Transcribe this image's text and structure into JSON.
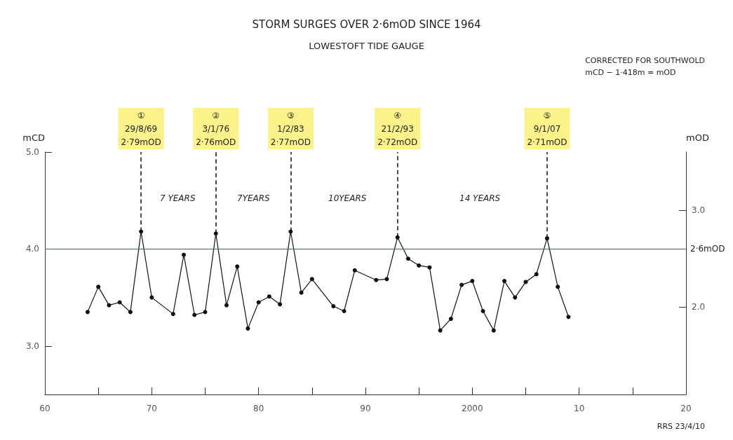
{
  "chart_data": {
    "type": "line",
    "title": "STORM SURGES OVER 2·6mOD SINCE 1964",
    "subtitle": "LOWESTOFT TIDE GAUGE",
    "ylabel": "mCD",
    "y2label": "mOD",
    "x": [
      1964,
      1965,
      1966,
      1967,
      1968,
      1969,
      1970,
      1972,
      1973,
      1974,
      1975,
      1976,
      1977,
      1978,
      1979,
      1980,
      1981,
      1982,
      1983,
      1984,
      1985,
      1987,
      1988,
      1989,
      1991,
      1992,
      1993,
      1994,
      1995,
      1996,
      1997,
      1998,
      1999,
      2000,
      2001,
      2002,
      2003,
      2004,
      2005,
      2006,
      2007,
      2008,
      2009
    ],
    "series": [
      {
        "color": "#111111",
        "values": [
          3.35,
          3.61,
          3.42,
          3.45,
          3.35,
          4.18,
          3.5,
          3.33,
          3.94,
          3.32,
          3.35,
          4.16,
          3.42,
          3.82,
          3.18,
          3.45,
          3.51,
          3.43,
          4.18,
          3.55,
          3.69,
          3.41,
          3.36,
          3.78,
          3.68,
          3.69,
          4.12,
          3.9,
          3.83,
          3.81,
          3.16,
          3.28,
          3.63,
          3.67,
          3.36,
          3.16,
          3.67,
          3.5,
          3.66,
          3.74,
          4.11,
          3.61,
          3.3
        ],
        "value_labels": [
          null,
          null,
          null,
          null,
          null,
          "①\n29/8/69\n2·79mOD",
          null,
          null,
          null,
          null,
          null,
          "②\n3/1/76\n2·76mOD",
          null,
          null,
          null,
          null,
          null,
          null,
          "③\n1/2/83\n2·77mOD",
          null,
          null,
          null,
          null,
          null,
          null,
          null,
          "④\n21/2/93\n2·72mOD",
          null,
          null,
          null,
          null,
          null,
          null,
          null,
          null,
          null,
          null,
          null,
          null,
          null,
          "⑤\n9/1/07\n2·71mOD",
          null,
          null
        ]
      }
    ],
    "xlim": [
      1960,
      2020
    ],
    "xticks": [
      {
        "value": 1960,
        "label": "60"
      },
      {
        "value": 1965,
        "label": null
      },
      {
        "value": 1970,
        "label": "70"
      },
      {
        "value": 1975,
        "label": null
      },
      {
        "value": 1980,
        "label": "80"
      },
      {
        "value": 1985,
        "label": null
      },
      {
        "value": 1990,
        "label": "90"
      },
      {
        "value": 1995,
        "label": null
      },
      {
        "value": 2000,
        "label": "2000"
      },
      {
        "value": 2005,
        "label": null
      },
      {
        "value": 2010,
        "label": "10"
      },
      {
        "value": 2015,
        "label": null
      },
      {
        "value": 2020,
        "label": "20"
      }
    ],
    "ylim": [
      2.5,
      5.0
    ],
    "yticks": [
      {
        "value": 3.0,
        "label": "3.0"
      },
      {
        "value": 4.0,
        "label": "4.0"
      },
      {
        "value": 5.0,
        "label": "5.0"
      }
    ],
    "y2lim": [
      1.1,
      3.6
    ],
    "y2ticks": [
      {
        "value": 2.0,
        "label": "2.0"
      },
      {
        "value": 3.0,
        "label": "3.0"
      }
    ],
    "ref_lines": [
      {
        "axis": "y",
        "value": 4.0,
        "label": "2·6mOD",
        "color": "#4a6a6a"
      }
    ],
    "annotations": [
      "7 YEARS",
      "7YEARS",
      "10YEARS",
      "14 YEARS",
      "CORRECTED FOR SOUTHWOLD\nmCD − 1·418m = mOD",
      "RRS 23/4/10"
    ],
    "marker": "circle",
    "line_style": "solid",
    "grid": false
  }
}
